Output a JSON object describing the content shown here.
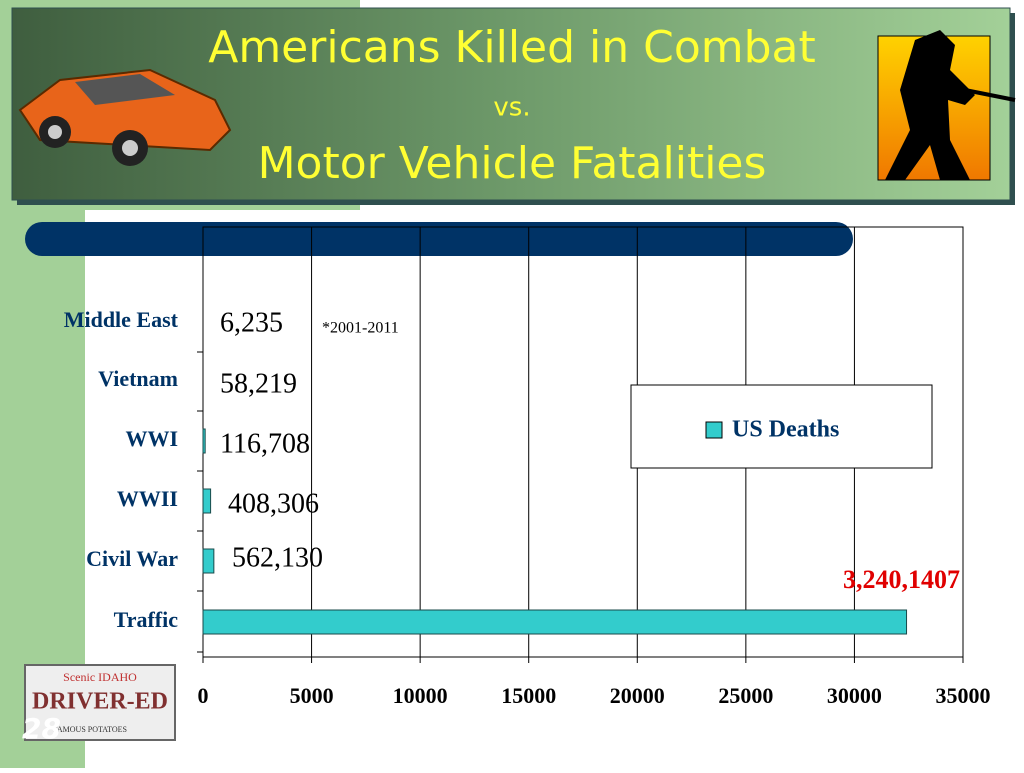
{
  "slide_number": "28",
  "plate": {
    "top": "Scenic IDAHO",
    "main": "DRIVER-ED",
    "bottom": "FAMOUS POTATOES"
  },
  "chart_data": {
    "type": "bar",
    "orientation": "horizontal",
    "title": [
      "Americans Killed in Combat",
      "vs.",
      "Motor Vehicle Fatalities"
    ],
    "categories": [
      "Middle East",
      "Vietnam",
      "WWI",
      "WWII",
      "Civil War",
      "Traffic"
    ],
    "series": [
      {
        "name": "US Deaths",
        "color": "#33cccc",
        "values": [
          0,
          0,
          100,
          350,
          500,
          32400
        ]
      }
    ],
    "xlim": [
      0,
      35000
    ],
    "xticks": [
      0,
      5000,
      10000,
      15000,
      20000,
      25000,
      30000,
      35000
    ],
    "grid": true,
    "legend": "right",
    "annotations": [
      "6,235",
      "*2001-2011",
      "58,219",
      "116,708",
      "408,306",
      "562,130",
      "3,240,1407"
    ]
  }
}
